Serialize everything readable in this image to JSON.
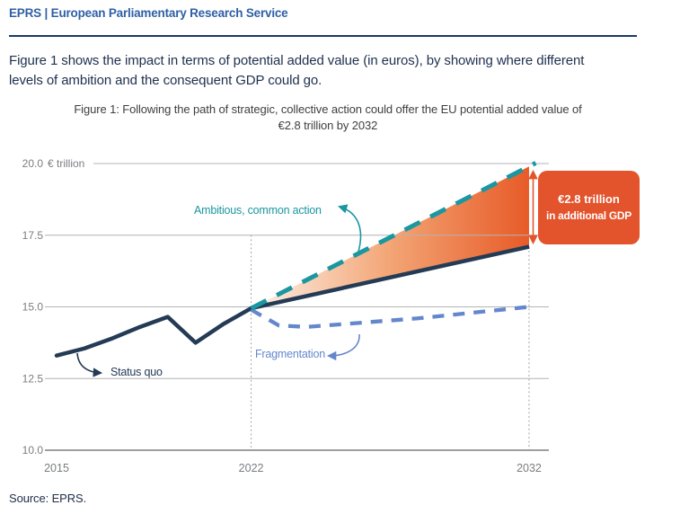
{
  "header": {
    "title": "EPRS | European Parliamentary Research Service"
  },
  "intro": {
    "line1": "Figure 1 shows the impact in terms of potential added value (in euros), by showing where different",
    "line2": "levels of ambition and the consequent GDP could go."
  },
  "figure": {
    "title_line1": "Figure 1: Following the path of strategic, collective action could offer the EU potential added value of",
    "title_line2": "€2.8 trillion by 2032"
  },
  "source": "Source: EPRS.",
  "colors": {
    "header_blue": "#2F5FA5",
    "rule_navy": "#1A3A66",
    "grid": "#B4B4B4",
    "axis": "#7F7F7F",
    "tick_text": "#7B7D80",
    "guide_dotted": "#9B9B9B"
  },
  "chart_data": {
    "type": "line",
    "unit_label": "€ trillion",
    "ylim": [
      10,
      20
    ],
    "y_ticks": [
      "20.0",
      "17.5",
      "15.0",
      "12.5",
      "10.0"
    ],
    "y_tick_values": [
      20,
      17.5,
      15,
      12.5,
      10
    ],
    "xlim": [
      2015,
      2032
    ],
    "x_ticks": [
      2015,
      2022,
      2032
    ],
    "grid": true,
    "series": [
      {
        "name": "Status quo (historical)",
        "style": "solid",
        "color": "#243B55",
        "x": [
          2015,
          2016,
          2017,
          2018,
          2019,
          2020,
          2021,
          2022
        ],
        "values": [
          13.3,
          13.55,
          13.9,
          14.3,
          14.65,
          13.75,
          14.4,
          14.95
        ]
      },
      {
        "name": "Status quo (projection)",
        "style": "solid",
        "color": "#243B55",
        "x": [
          2022,
          2032
        ],
        "values": [
          14.95,
          17.1
        ]
      },
      {
        "name": "Ambitious, common action",
        "style": "dashed",
        "color": "#1A97A1",
        "x": [
          2022,
          2032
        ],
        "values": [
          14.95,
          19.9
        ]
      },
      {
        "name": "Fragmentation",
        "style": "dashed",
        "color": "#6487CC",
        "x": [
          2022,
          2023,
          2024,
          2026,
          2028,
          2030,
          2032
        ],
        "values": [
          14.9,
          14.35,
          14.3,
          14.45,
          14.6,
          14.8,
          15.0
        ]
      }
    ],
    "fill": {
      "between": [
        "Ambitious, common action",
        "Status quo (projection)"
      ],
      "gradient": [
        "#FDF1E8",
        "#F3A575",
        "#E75B28"
      ]
    },
    "guides": [
      {
        "x": 2022,
        "from": 17.5,
        "to": 10
      },
      {
        "x": 2032,
        "from": 17.1,
        "to": 10
      }
    ],
    "annotations": {
      "status_quo_label": "Status quo",
      "ambitious_label": "Ambitious, common action",
      "fragmentation_label": "Fragmentation",
      "gap_box": {
        "line1": "€2.8 trillion",
        "line2": "in additional GDP",
        "color": "#E3532C"
      }
    }
  }
}
